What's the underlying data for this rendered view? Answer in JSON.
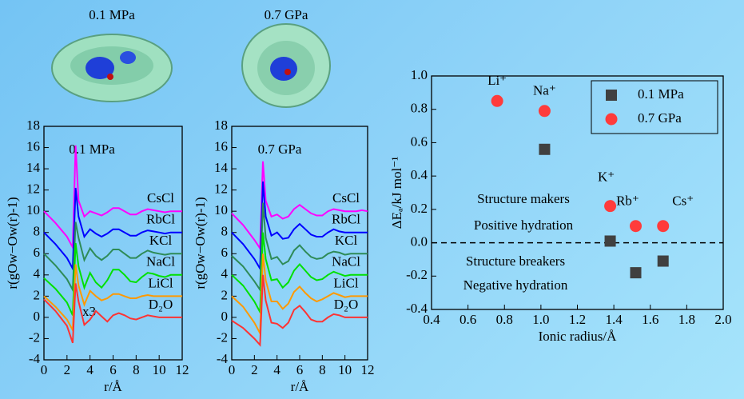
{
  "chart_data": [
    {
      "type": "line",
      "title": "0.1 MPa",
      "annotation": "0.1 MPa",
      "note": "x3",
      "x_label": "r/Å",
      "y_label": "r(gOw−Ow(r)-1)",
      "xlim": [
        0,
        12
      ],
      "ylim": [
        -4,
        18
      ],
      "xticks": [
        0,
        2,
        4,
        6,
        8,
        10,
        12
      ],
      "yticks": [
        -4,
        -2,
        0,
        2,
        4,
        6,
        8,
        10,
        12,
        14,
        16,
        18
      ],
      "x": [
        0,
        1,
        2,
        2.5,
        2.75,
        3,
        3.5,
        4,
        4.5,
        5,
        5.5,
        6,
        6.5,
        7,
        7.5,
        8,
        8.5,
        9,
        9.5,
        10,
        10.5,
        11,
        11.5,
        12
      ],
      "series": [
        {
          "name": "CsCl",
          "color": "#ff00ff",
          "values": [
            10,
            8.9,
            7.6,
            6.6,
            16.2,
            11,
            9.5,
            10,
            9.8,
            9.6,
            9.9,
            10.3,
            10.3,
            10,
            9.7,
            9.7,
            10,
            10.2,
            10.1,
            10,
            9.9,
            10,
            10,
            10
          ]
        },
        {
          "name": "RbCl",
          "color": "#0000ff",
          "values": [
            8,
            6.9,
            5.6,
            4.6,
            12.2,
            9.5,
            7.6,
            8.3,
            7.9,
            7.6,
            7.9,
            8.3,
            8.3,
            8,
            7.7,
            7.7,
            8,
            8.2,
            8.1,
            8,
            7.9,
            8,
            8,
            8
          ]
        },
        {
          "name": "KCl",
          "color": "#2e8b57",
          "values": [
            6,
            4.9,
            3.6,
            2.6,
            9,
            7.5,
            5.4,
            6.5,
            5.8,
            5.4,
            5.8,
            6.4,
            6.4,
            6,
            5.6,
            5.6,
            6,
            6.3,
            6.1,
            6,
            5.9,
            6,
            6,
            6
          ]
        },
        {
          "name": "NaCl",
          "color": "#00e000",
          "values": [
            3.7,
            2.7,
            1.4,
            0.2,
            7,
            4.8,
            2.8,
            4.2,
            3.3,
            2.8,
            3.5,
            4.5,
            4.5,
            4,
            3.4,
            3.3,
            3.8,
            4.2,
            4.1,
            3.9,
            3.8,
            4,
            4,
            4
          ]
        },
        {
          "name": "LiCl",
          "color": "#ff9900",
          "values": [
            2,
            1,
            -0.2,
            -1.2,
            5,
            3,
            1.2,
            2.5,
            2,
            1.6,
            1.8,
            2.2,
            2.2,
            2,
            1.8,
            1.8,
            2,
            2.1,
            2,
            2,
            2,
            2,
            2,
            2
          ]
        },
        {
          "name": "D₂O",
          "color": "#ff3333",
          "values": [
            1.7,
            0.6,
            -0.8,
            -2.4,
            3.2,
            1.5,
            -0.7,
            -0.2,
            0.6,
            0.1,
            -0.4,
            0.2,
            0.4,
            0.2,
            -0.1,
            -0.2,
            0,
            0.2,
            0.1,
            0,
            0,
            0,
            0,
            0
          ]
        }
      ]
    },
    {
      "type": "line",
      "title": "0.7 GPa",
      "annotation": "0.7 GPa",
      "x_label": "r/Å",
      "y_label": "r(gOw−Ow(r)-1)",
      "xlim": [
        0,
        12
      ],
      "ylim": [
        -4,
        18
      ],
      "xticks": [
        0,
        2,
        4,
        6,
        8,
        10,
        12
      ],
      "yticks": [
        -4,
        -2,
        0,
        2,
        4,
        6,
        8,
        10,
        12,
        14,
        16,
        18
      ],
      "x": [
        0,
        1,
        2,
        2.5,
        2.75,
        3,
        3.5,
        4,
        4.5,
        5,
        5.5,
        6,
        6.5,
        7,
        7.5,
        8,
        8.5,
        9,
        9.5,
        10,
        10.5,
        11,
        11.5,
        12
      ],
      "series": [
        {
          "name": "CsCl",
          "color": "#ff00ff",
          "values": [
            9.8,
            8.7,
            7.3,
            6.5,
            14.7,
            11,
            9.5,
            9.7,
            9.3,
            9.5,
            10.2,
            10.6,
            10.2,
            9.8,
            9.6,
            9.6,
            10,
            10.2,
            10.1,
            10,
            10,
            10,
            10.1,
            10
          ]
        },
        {
          "name": "RbCl",
          "color": "#0000ff",
          "values": [
            8,
            6.9,
            5.5,
            4.6,
            12.8,
            9.5,
            7.7,
            8,
            7.4,
            7.5,
            8.3,
            8.8,
            8.3,
            7.8,
            7.6,
            7.6,
            8,
            8.3,
            8.1,
            8,
            8,
            8,
            8,
            8
          ]
        },
        {
          "name": "KCl",
          "color": "#2e8b57",
          "values": [
            5.8,
            4.8,
            3.4,
            2.6,
            10.8,
            7.5,
            5.5,
            5.7,
            5,
            5.3,
            6.3,
            6.8,
            6.2,
            5.7,
            5.5,
            5.6,
            6,
            6.2,
            6.1,
            5.9,
            6,
            6,
            6,
            6
          ]
        },
        {
          "name": "NaCl",
          "color": "#00e000",
          "values": [
            4,
            3,
            1.5,
            0.5,
            8,
            5.5,
            3.5,
            3.6,
            2.8,
            3.3,
            4.4,
            5,
            4.4,
            3.8,
            3.5,
            3.6,
            4,
            4.3,
            4.1,
            3.9,
            4,
            4,
            4,
            4
          ]
        },
        {
          "name": "LiCl",
          "color": "#ff9900",
          "values": [
            2,
            1,
            -0.5,
            -1.5,
            6,
            3.5,
            1.5,
            1.5,
            0.8,
            1.3,
            2.4,
            2.9,
            2.3,
            1.8,
            1.5,
            1.7,
            2,
            2.3,
            2.1,
            1.9,
            2,
            2,
            2,
            2
          ]
        },
        {
          "name": "D₂O",
          "color": "#ff3333",
          "values": [
            -0.3,
            -1,
            -2,
            -2.6,
            4,
            1.6,
            -0.5,
            -0.6,
            -1,
            -0.5,
            0.7,
            1.1,
            0.5,
            -0.2,
            -0.4,
            -0.4,
            0,
            0.3,
            0.2,
            0,
            0,
            0,
            0,
            0
          ]
        }
      ]
    },
    {
      "type": "scatter",
      "x_label": "Ionic radius/Å",
      "y_label": "ΔEₐ/kJ mol⁻¹",
      "xlim": [
        0.4,
        2.0
      ],
      "ylim": [
        -0.4,
        1.0
      ],
      "xticks": [
        0.4,
        0.6,
        0.8,
        {
          "value": 1.0,
          "label": "1.0"
        },
        1.2,
        1.4,
        1.6,
        1.8,
        {
          "value": 2.0,
          "label": "2.0"
        }
      ],
      "yticks": [
        -0.4,
        -0.2,
        {
          "value": 0.0,
          "label": "0.0"
        },
        0.2,
        0.4,
        0.6,
        0.8,
        {
          "value": 1.0,
          "label": "1.0"
        }
      ],
      "reference_line": 0,
      "legend": "upper right",
      "series": [
        {
          "name": "0.1 MPa",
          "color": "#404040",
          "marker": "square",
          "x": [
            1.02,
            1.38,
            1.52,
            1.67
          ],
          "values": [
            0.56,
            0.01,
            -0.18,
            -0.11
          ]
        },
        {
          "name": "0.7 GPa",
          "color": "#ff3b3b",
          "marker": "circle",
          "x": [
            0.76,
            1.02,
            1.38,
            1.52,
            1.67
          ],
          "values": [
            0.85,
            0.79,
            0.22,
            0.1,
            0.1
          ]
        }
      ],
      "point_labels": [
        "Li⁺",
        "Na⁺",
        "K⁺",
        "Rb⁺",
        "Cs⁺"
      ],
      "text_blocks": [
        {
          "text": "Structure makers",
          "color": "#1a1aff"
        },
        {
          "text": "Positive hydration",
          "color": "#1a1aff"
        },
        {
          "text": "Structure breakers",
          "color": "#f08a1a"
        },
        {
          "text": "Negative hydration",
          "color": "#f08a1a"
        }
      ]
    }
  ]
}
